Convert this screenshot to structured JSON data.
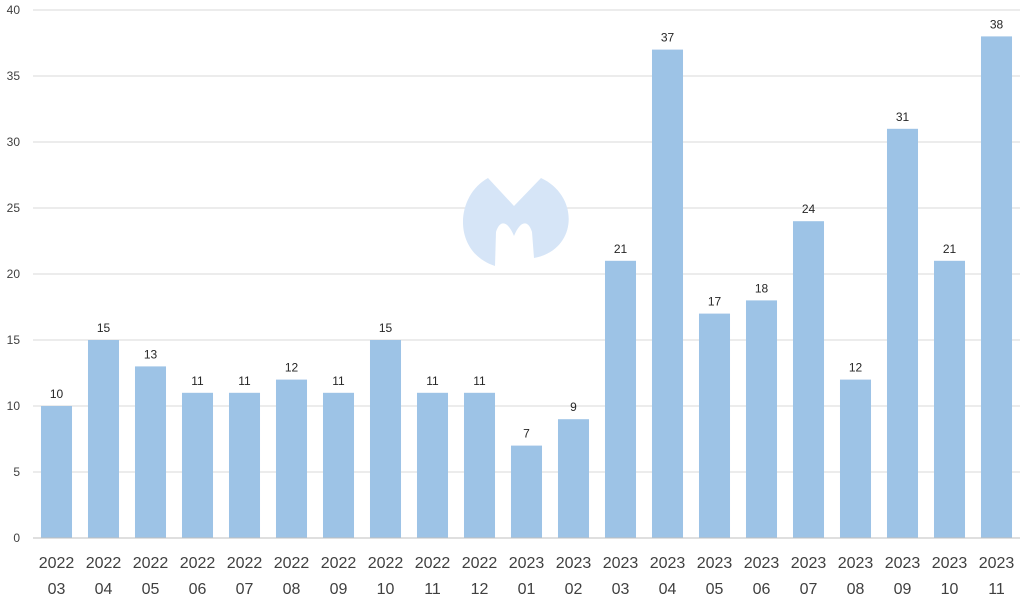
{
  "chart_data": {
    "type": "bar",
    "title": "",
    "xlabel": "",
    "ylabel": "",
    "categories": [
      [
        "2022",
        "03"
      ],
      [
        "2022",
        "04"
      ],
      [
        "2022",
        "05"
      ],
      [
        "2022",
        "06"
      ],
      [
        "2022",
        "07"
      ],
      [
        "2022",
        "08"
      ],
      [
        "2022",
        "09"
      ],
      [
        "2022",
        "10"
      ],
      [
        "2022",
        "11"
      ],
      [
        "2022",
        "12"
      ],
      [
        "2023",
        "01"
      ],
      [
        "2023",
        "02"
      ],
      [
        "2023",
        "03"
      ],
      [
        "2023",
        "04"
      ],
      [
        "2023",
        "05"
      ],
      [
        "2023",
        "06"
      ],
      [
        "2023",
        "07"
      ],
      [
        "2023",
        "08"
      ],
      [
        "2023",
        "09"
      ],
      [
        "2023",
        "10"
      ],
      [
        "2023",
        "11"
      ]
    ],
    "values": [
      10,
      15,
      13,
      11,
      11,
      12,
      11,
      15,
      11,
      11,
      7,
      9,
      21,
      37,
      17,
      18,
      24,
      12,
      31,
      21,
      38
    ],
    "ylim": [
      0,
      40
    ],
    "yticks": [
      0,
      5,
      10,
      15,
      20,
      25,
      30,
      35,
      40
    ],
    "grid": true,
    "legend": "none",
    "colors": {
      "bar": "#9dc3e6",
      "watermark": "#d6e5f7"
    }
  },
  "watermark": {
    "icon": "malwarebytes-logo-icon"
  }
}
